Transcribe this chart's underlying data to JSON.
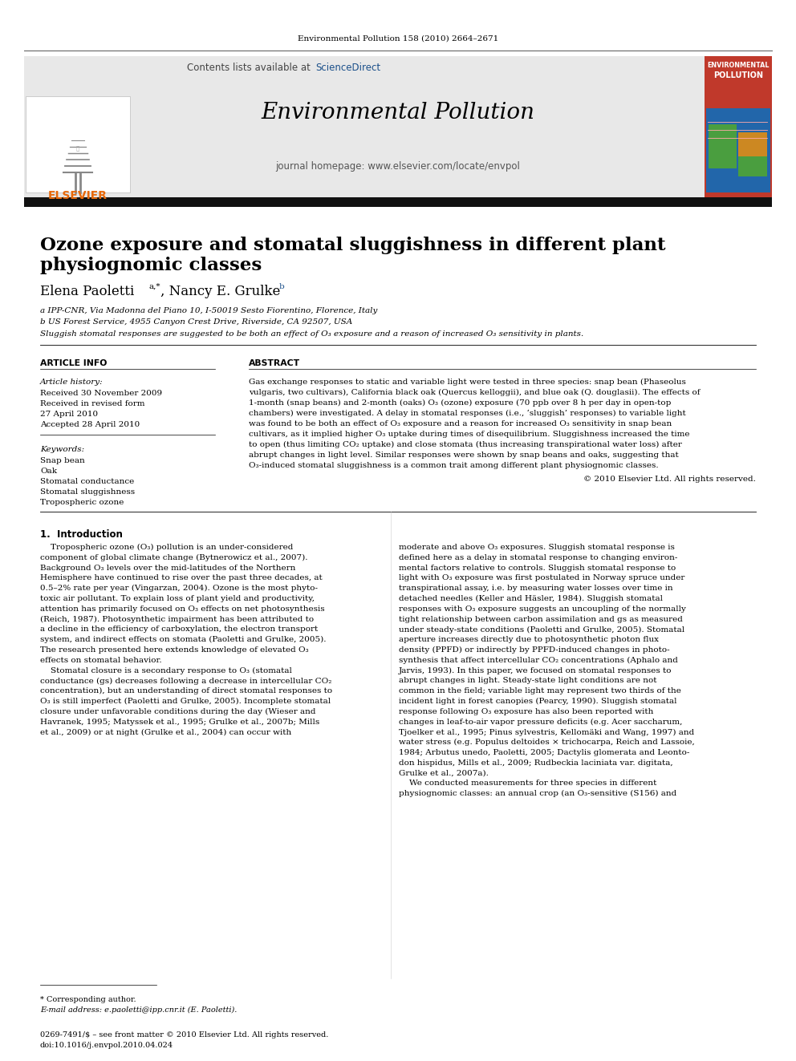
{
  "fig_width": 9.92,
  "fig_height": 13.23,
  "dpi": 100,
  "bg_color": "#ffffff",
  "journal_ref": "Environmental Pollution 158 (2010) 2664–2671",
  "journal_name": "Environmental Pollution",
  "journal_homepage": "journal homepage: www.elsevier.com/locate/envpol",
  "contents_text": "Contents lists available at ",
  "sciencedirect_text": "ScienceDirect",
  "elsevier_text": "ELSEVIER",
  "header_bg": "#e8e8e8",
  "article_title_line1": "Ozone exposure and stomatal sluggishness in different plant",
  "article_title_line2": "physiognomic classes",
  "author_main": "Elena Paoletti ",
  "author_sup1": "a,*",
  "author_mid": ", Nancy E. Grulke ",
  "author_sup2": "b",
  "affil_a": "a IPP-CNR, Via Madonna del Piano 10, I-50019 Sesto Fiorentino, Florence, Italy",
  "affil_b": "b US Forest Service, 4955 Canyon Crest Drive, Riverside, CA 92507, USA",
  "highlight": "Sluggish stomatal responses are suggested to be both an effect of O₃ exposure and a reason of increased O₃ sensitivity in plants.",
  "article_info_header": "ARTICLE INFO",
  "abstract_header": "ABSTRACT",
  "article_history_header": "Article history:",
  "received1": "Received 30 November 2009",
  "received_revised": "Received in revised form",
  "revised_date": "27 April 2010",
  "accepted": "Accepted 28 April 2010",
  "keywords_header": "Keywords:",
  "keywords": [
    "Snap bean",
    "Oak",
    "Stomatal conductance",
    "Stomatal sluggishness",
    "Tropospheric ozone"
  ],
  "copyright": "© 2010 Elsevier Ltd. All rights reserved.",
  "intro_header": "1.  Introduction",
  "footnote_star": "* Corresponding author.",
  "footnote_email": "E-mail address: e.paoletti@ipp.cnr.it (E. Paoletti).",
  "footer_issn": "0269-7491/$ – see front matter © 2010 Elsevier Ltd. All rights reserved.",
  "footer_doi": "doi:10.1016/j.envpol.2010.04.024",
  "ep_journal_color": "#c0392b",
  "elsevier_orange": "#e8690a",
  "sciencedirect_blue": "#1a4f8a",
  "link_blue": "#1a4f8a",
  "abstract_lines": [
    "Gas exchange responses to static and variable light were tested in three species: snap bean (Phaseolus",
    "vulgaris, two cultivars), California black oak (Quercus kelloggii), and blue oak (Q. douglasii). The effects of",
    "1-month (snap beans) and 2-month (oaks) O₃ (ozone) exposure (70 ppb over 8 h per day in open-top",
    "chambers) were investigated. A delay in stomatal responses (i.e., ‘sluggish’ responses) to variable light",
    "was found to be both an effect of O₃ exposure and a reason for increased O₃ sensitivity in snap bean",
    "cultivars, as it implied higher O₃ uptake during times of disequilibrium. Sluggishness increased the time",
    "to open (thus limiting CO₂ uptake) and close stomata (thus increasing transpirational water loss) after",
    "abrupt changes in light level. Similar responses were shown by snap beans and oaks, suggesting that",
    "O₃-induced stomatal sluggishness is a common trait among different plant physiognomic classes."
  ],
  "intro1_lines": [
    "    Tropospheric ozone (O₃) pollution is an under-considered",
    "component of global climate change (Bytnerowicz et al., 2007).",
    "Background O₃ levels over the mid-latitudes of the Northern",
    "Hemisphere have continued to rise over the past three decades, at",
    "0.5–2% rate per year (Vingarzan, 2004). Ozone is the most phyto-",
    "toxic air pollutant. To explain loss of plant yield and productivity,",
    "attention has primarily focused on O₃ effects on net photosynthesis",
    "(Reich, 1987). Photosynthetic impairment has been attributed to",
    "a decline in the efficiency of carboxylation, the electron transport",
    "system, and indirect effects on stomata (Paoletti and Grulke, 2005).",
    "The research presented here extends knowledge of elevated O₃",
    "effects on stomatal behavior.",
    "    Stomatal closure is a secondary response to O₃ (stomatal",
    "conductance (gs) decreases following a decrease in intercellular CO₂",
    "concentration), but an understanding of direct stomatal responses to",
    "O₃ is still imperfect (Paoletti and Grulke, 2005). Incomplete stomatal",
    "closure under unfavorable conditions during the day (Wieser and",
    "Havranek, 1995; Matyssek et al., 1995; Grulke et al., 2007b; Mills",
    "et al., 2009) or at night (Grulke et al., 2004) can occur with"
  ],
  "intro2_lines": [
    "moderate and above O₃ exposures. Sluggish stomatal response is",
    "defined here as a delay in stomatal response to changing environ-",
    "mental factors relative to controls. Sluggish stomatal response to",
    "light with O₃ exposure was first postulated in Norway spruce under",
    "transpirational assay, i.e. by measuring water losses over time in",
    "detached needles (Keller and Häsler, 1984). Sluggish stomatal",
    "responses with O₃ exposure suggests an uncoupling of the normally",
    "tight relationship between carbon assimilation and gs as measured",
    "under steady-state conditions (Paoletti and Grulke, 2005). Stomatal",
    "aperture increases directly due to photosynthetic photon flux",
    "density (PPFD) or indirectly by PPFD-induced changes in photo-",
    "synthesis that affect intercellular CO₂ concentrations (Aphalo and",
    "Jarvis, 1993). In this paper, we focused on stomatal responses to",
    "abrupt changes in light. Steady-state light conditions are not",
    "common in the field; variable light may represent two thirds of the",
    "incident light in forest canopies (Pearcy, 1990). Sluggish stomatal",
    "response following O₃ exposure has also been reported with",
    "changes in leaf-to-air vapor pressure deficits (e.g. Acer saccharum,",
    "Tjoelker et al., 1995; Pinus sylvestris, Kellomäki and Wang, 1997) and",
    "water stress (e.g. Populus deltoides × trichocarpa, Reich and Lassoie,",
    "1984; Arbutus unedo, Paoletti, 2005; Dactylis glomerata and Leonto-",
    "don hispidus, Mills et al., 2009; Rudbeckia laciniata var. digitata,",
    "Grulke et al., 2007a).",
    "    We conducted measurements for three species in different",
    "physiognomic classes: an annual crop (an O₃-sensitive (S156) and"
  ]
}
